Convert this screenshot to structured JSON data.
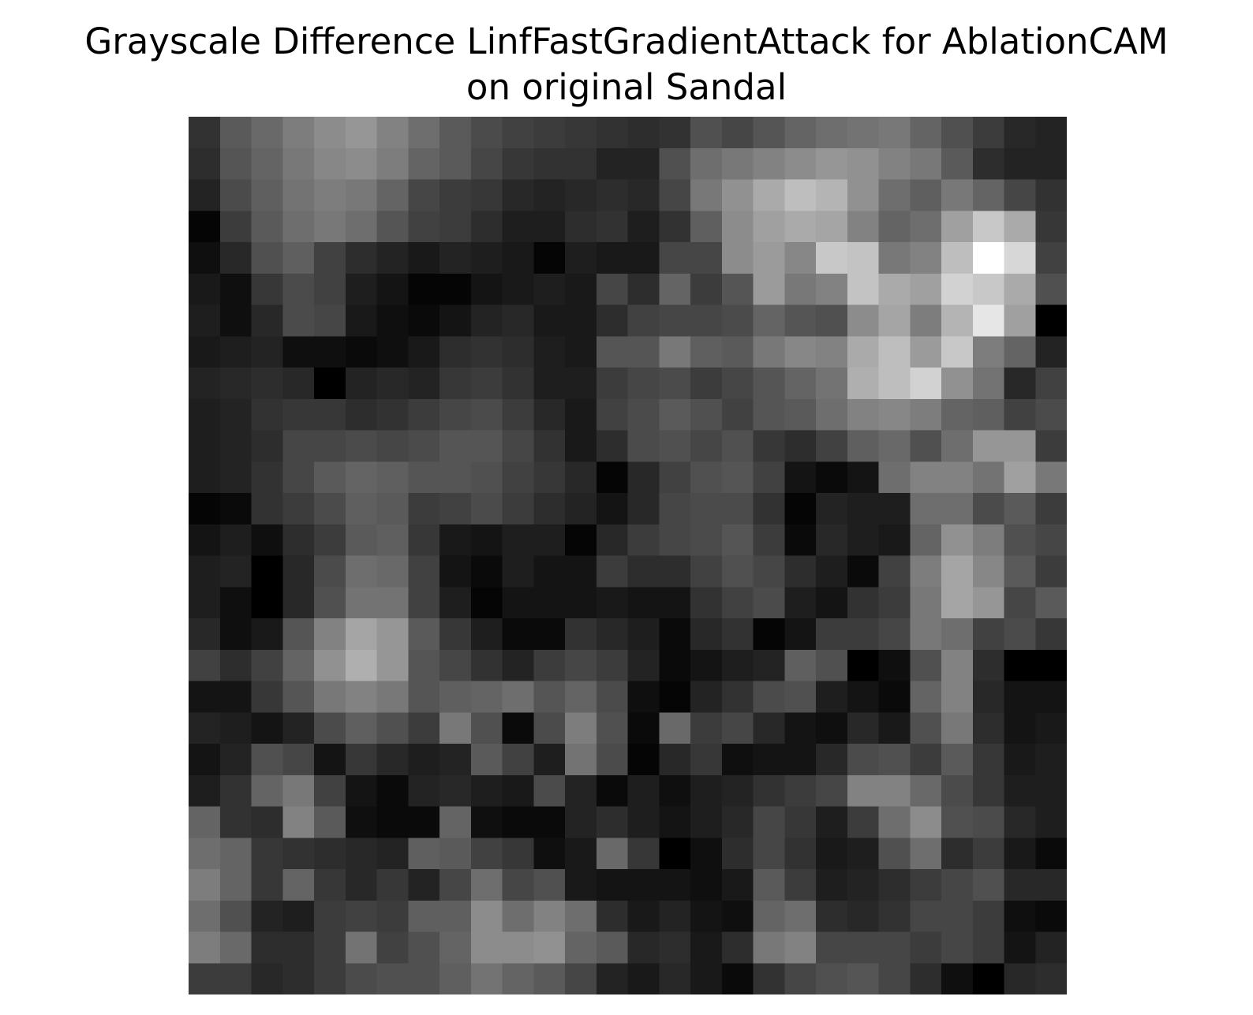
{
  "chart_data": {
    "type": "heatmap",
    "title": "Grayscale Difference LinfFastGradientAttack for AblationCAM\non original Sandal",
    "title_lines": [
      "Grayscale Difference LinfFastGradientAttack for AblationCAM",
      "on original Sandal"
    ],
    "colormap": "gray",
    "axes_visible": false,
    "rows": 28,
    "cols": 28,
    "value_range": [
      0,
      255
    ],
    "values": [
      [
        50,
        90,
        105,
        125,
        140,
        150,
        130,
        110,
        90,
        75,
        65,
        60,
        55,
        50,
        45,
        50,
        80,
        70,
        85,
        100,
        110,
        115,
        120,
        100,
        80,
        60,
        40,
        35
      ],
      [
        45,
        85,
        100,
        120,
        135,
        140,
        125,
        100,
        90,
        70,
        55,
        50,
        50,
        35,
        35,
        80,
        110,
        120,
        130,
        140,
        150,
        145,
        130,
        120,
        90,
        45,
        35,
        35
      ],
      [
        35,
        75,
        95,
        115,
        125,
        120,
        100,
        70,
        60,
        55,
        40,
        35,
        40,
        45,
        40,
        70,
        120,
        145,
        170,
        190,
        180,
        145,
        110,
        95,
        120,
        100,
        70,
        50
      ],
      [
        5,
        60,
        90,
        110,
        120,
        110,
        85,
        65,
        60,
        45,
        30,
        30,
        45,
        50,
        30,
        50,
        95,
        140,
        160,
        170,
        165,
        130,
        100,
        110,
        160,
        200,
        170,
        55
      ],
      [
        15,
        40,
        80,
        95,
        65,
        45,
        35,
        25,
        35,
        30,
        25,
        5,
        30,
        25,
        25,
        70,
        70,
        140,
        155,
        135,
        200,
        195,
        120,
        130,
        190,
        255,
        215,
        65
      ],
      [
        25,
        15,
        55,
        75,
        65,
        30,
        20,
        5,
        5,
        20,
        25,
        30,
        25,
        70,
        45,
        100,
        60,
        85,
        155,
        120,
        130,
        195,
        170,
        160,
        210,
        200,
        170,
        80
      ],
      [
        30,
        15,
        40,
        75,
        70,
        25,
        15,
        10,
        20,
        35,
        40,
        25,
        25,
        45,
        65,
        70,
        70,
        75,
        100,
        85,
        80,
        140,
        165,
        125,
        180,
        230,
        160,
        0
      ],
      [
        25,
        30,
        35,
        15,
        15,
        10,
        15,
        25,
        45,
        50,
        45,
        30,
        25,
        85,
        85,
        120,
        95,
        90,
        120,
        135,
        130,
        170,
        190,
        155,
        200,
        125,
        100,
        35
      ],
      [
        35,
        40,
        45,
        40,
        0,
        35,
        40,
        35,
        55,
        60,
        50,
        30,
        30,
        60,
        70,
        75,
        60,
        70,
        85,
        100,
        115,
        175,
        190,
        210,
        145,
        115,
        40,
        65
      ],
      [
        30,
        35,
        50,
        55,
        55,
        45,
        50,
        60,
        70,
        75,
        60,
        40,
        25,
        65,
        75,
        90,
        80,
        65,
        85,
        90,
        110,
        130,
        135,
        125,
        100,
        95,
        65,
        75
      ],
      [
        30,
        35,
        45,
        70,
        70,
        75,
        70,
        75,
        85,
        85,
        70,
        50,
        25,
        45,
        75,
        80,
        70,
        80,
        55,
        45,
        65,
        95,
        105,
        80,
        110,
        150,
        150,
        60
      ],
      [
        30,
        35,
        50,
        70,
        90,
        100,
        95,
        85,
        85,
        80,
        65,
        55,
        40,
        5,
        40,
        65,
        80,
        85,
        65,
        20,
        10,
        20,
        110,
        130,
        130,
        115,
        160,
        120
      ],
      [
        5,
        10,
        50,
        60,
        75,
        95,
        90,
        60,
        65,
        75,
        60,
        45,
        35,
        20,
        40,
        70,
        75,
        75,
        50,
        5,
        35,
        30,
        30,
        110,
        110,
        75,
        90,
        60
      ],
      [
        20,
        30,
        15,
        45,
        60,
        90,
        95,
        55,
        25,
        20,
        30,
        30,
        5,
        40,
        60,
        70,
        75,
        85,
        60,
        10,
        40,
        30,
        25,
        100,
        145,
        125,
        80,
        70
      ],
      [
        30,
        35,
        0,
        40,
        75,
        110,
        105,
        65,
        20,
        10,
        30,
        20,
        20,
        60,
        45,
        45,
        65,
        80,
        70,
        45,
        30,
        10,
        65,
        125,
        165,
        135,
        90,
        60
      ],
      [
        30,
        15,
        0,
        40,
        80,
        115,
        115,
        65,
        30,
        5,
        20,
        20,
        20,
        25,
        20,
        20,
        50,
        65,
        75,
        30,
        20,
        50,
        60,
        120,
        165,
        150,
        70,
        90
      ],
      [
        40,
        15,
        25,
        85,
        130,
        165,
        150,
        90,
        55,
        30,
        10,
        10,
        50,
        40,
        30,
        10,
        40,
        50,
        5,
        20,
        60,
        60,
        70,
        120,
        110,
        65,
        75,
        55
      ],
      [
        65,
        45,
        65,
        100,
        145,
        175,
        150,
        85,
        70,
        50,
        35,
        60,
        70,
        60,
        35,
        10,
        20,
        30,
        35,
        95,
        80,
        0,
        15,
        80,
        130,
        45,
        0,
        0
      ],
      [
        20,
        20,
        55,
        85,
        120,
        130,
        120,
        85,
        95,
        100,
        110,
        85,
        100,
        75,
        15,
        5,
        35,
        50,
        75,
        80,
        30,
        20,
        10,
        100,
        130,
        40,
        20,
        20
      ],
      [
        35,
        30,
        20,
        35,
        75,
        95,
        80,
        60,
        120,
        80,
        10,
        75,
        125,
        80,
        10,
        105,
        60,
        70,
        40,
        20,
        15,
        40,
        25,
        80,
        120,
        45,
        20,
        25
      ],
      [
        20,
        35,
        80,
        70,
        20,
        55,
        40,
        30,
        35,
        90,
        65,
        30,
        115,
        75,
        5,
        40,
        55,
        15,
        20,
        20,
        40,
        75,
        80,
        60,
        90,
        55,
        25,
        30
      ],
      [
        30,
        50,
        100,
        120,
        65,
        20,
        10,
        35,
        40,
        30,
        25,
        75,
        35,
        10,
        30,
        15,
        30,
        35,
        50,
        60,
        70,
        130,
        130,
        105,
        75,
        55,
        30,
        30
      ],
      [
        100,
        50,
        45,
        130,
        90,
        15,
        10,
        10,
        100,
        15,
        10,
        10,
        35,
        45,
        30,
        20,
        30,
        40,
        70,
        55,
        30,
        60,
        110,
        140,
        80,
        75,
        40,
        30
      ],
      [
        110,
        100,
        55,
        50,
        45,
        40,
        35,
        95,
        90,
        65,
        55,
        15,
        25,
        105,
        55,
        0,
        15,
        45,
        70,
        50,
        25,
        30,
        80,
        110,
        45,
        60,
        25,
        10
      ],
      [
        125,
        100,
        55,
        100,
        55,
        40,
        55,
        35,
        70,
        110,
        70,
        80,
        25,
        20,
        20,
        20,
        15,
        25,
        90,
        60,
        30,
        35,
        45,
        60,
        70,
        80,
        40,
        40
      ],
      [
        110,
        80,
        35,
        30,
        60,
        65,
        60,
        95,
        95,
        140,
        110,
        130,
        110,
        45,
        25,
        35,
        20,
        15,
        100,
        110,
        45,
        40,
        50,
        70,
        70,
        60,
        15,
        10
      ],
      [
        125,
        105,
        45,
        45,
        60,
        115,
        65,
        80,
        100,
        140,
        140,
        145,
        100,
        90,
        40,
        45,
        25,
        45,
        120,
        130,
        70,
        70,
        70,
        60,
        70,
        60,
        20,
        35
      ],
      [
        60,
        60,
        40,
        45,
        60,
        75,
        80,
        80,
        95,
        115,
        100,
        90,
        70,
        35,
        25,
        40,
        25,
        10,
        50,
        70,
        80,
        85,
        70,
        45,
        15,
        0,
        40,
        45
      ]
    ]
  }
}
